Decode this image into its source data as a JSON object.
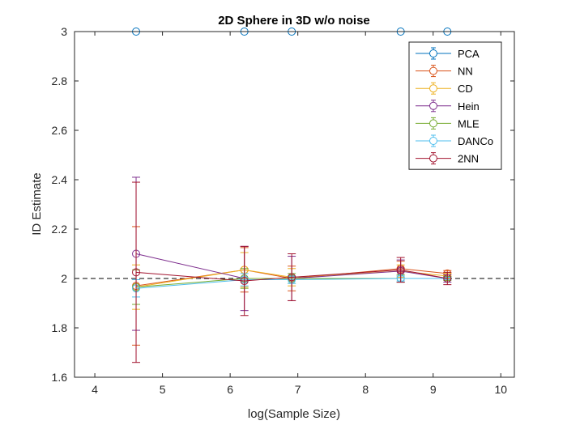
{
  "chart_data": {
    "type": "line",
    "title": "2D Sphere in 3D w/o noise",
    "xlabel": "log(Sample Size)",
    "ylabel": "ID Estimate",
    "xlim": [
      3.7,
      10.2
    ],
    "ylim": [
      1.6,
      3.0
    ],
    "xticks": [
      4,
      5,
      6,
      7,
      8,
      9,
      10
    ],
    "yticks": [
      1.6,
      1.8,
      2.0,
      2.2,
      2.4,
      2.6,
      2.8,
      3.0
    ],
    "xtick_labels": [
      "4",
      "5",
      "6",
      "7",
      "8",
      "9",
      "10"
    ],
    "ytick_labels": [
      "1.6",
      "1.8",
      "2",
      "2.2",
      "2.4",
      "2.6",
      "2.8",
      "3"
    ],
    "x": [
      4.61,
      6.21,
      6.91,
      8.52,
      9.21
    ],
    "reference_line": {
      "y": 2.0,
      "style": "dashed"
    },
    "legend_position": "top-right",
    "series": [
      {
        "name": "PCA",
        "color": "#0072BD",
        "values": [
          3.0,
          3.0,
          3.0,
          3.0,
          3.0
        ],
        "errors": [
          0,
          0,
          0,
          0,
          0
        ]
      },
      {
        "name": "NN",
        "color": "#D95319",
        "values": [
          1.97,
          2.035,
          2.0,
          2.04,
          2.02
        ],
        "errors": [
          0.24,
          0.09,
          0.05,
          0.03,
          0.012
        ]
      },
      {
        "name": "CD",
        "color": "#EDB120",
        "values": [
          1.965,
          2.035,
          2.005,
          2.03,
          2.01
        ],
        "errors": [
          0.09,
          0.07,
          0.035,
          0.025,
          0.012
        ]
      },
      {
        "name": "Hein",
        "color": "#7E2F8E",
        "values": [
          2.1,
          2.0,
          2.0,
          2.03,
          2.0
        ],
        "errors": [
          0.31,
          0.13,
          0.09,
          0.045,
          0.015
        ]
      },
      {
        "name": "MLE",
        "color": "#77AC30",
        "values": [
          1.965,
          2.0,
          2.0,
          2.0,
          2.0
        ],
        "errors": [
          0.07,
          0.04,
          0.02,
          0.015,
          0.008
        ]
      },
      {
        "name": "DANCo",
        "color": "#4DBEEE",
        "values": [
          1.96,
          1.995,
          1.995,
          2.0,
          2.0
        ],
        "errors": [
          0.035,
          0.025,
          0.015,
          0.01,
          0.005
        ]
      },
      {
        "name": "2NN",
        "color": "#A2142F",
        "values": [
          2.025,
          1.99,
          2.005,
          2.035,
          2.0
        ],
        "errors": [
          0.365,
          0.14,
          0.095,
          0.05,
          0.025
        ]
      }
    ]
  }
}
